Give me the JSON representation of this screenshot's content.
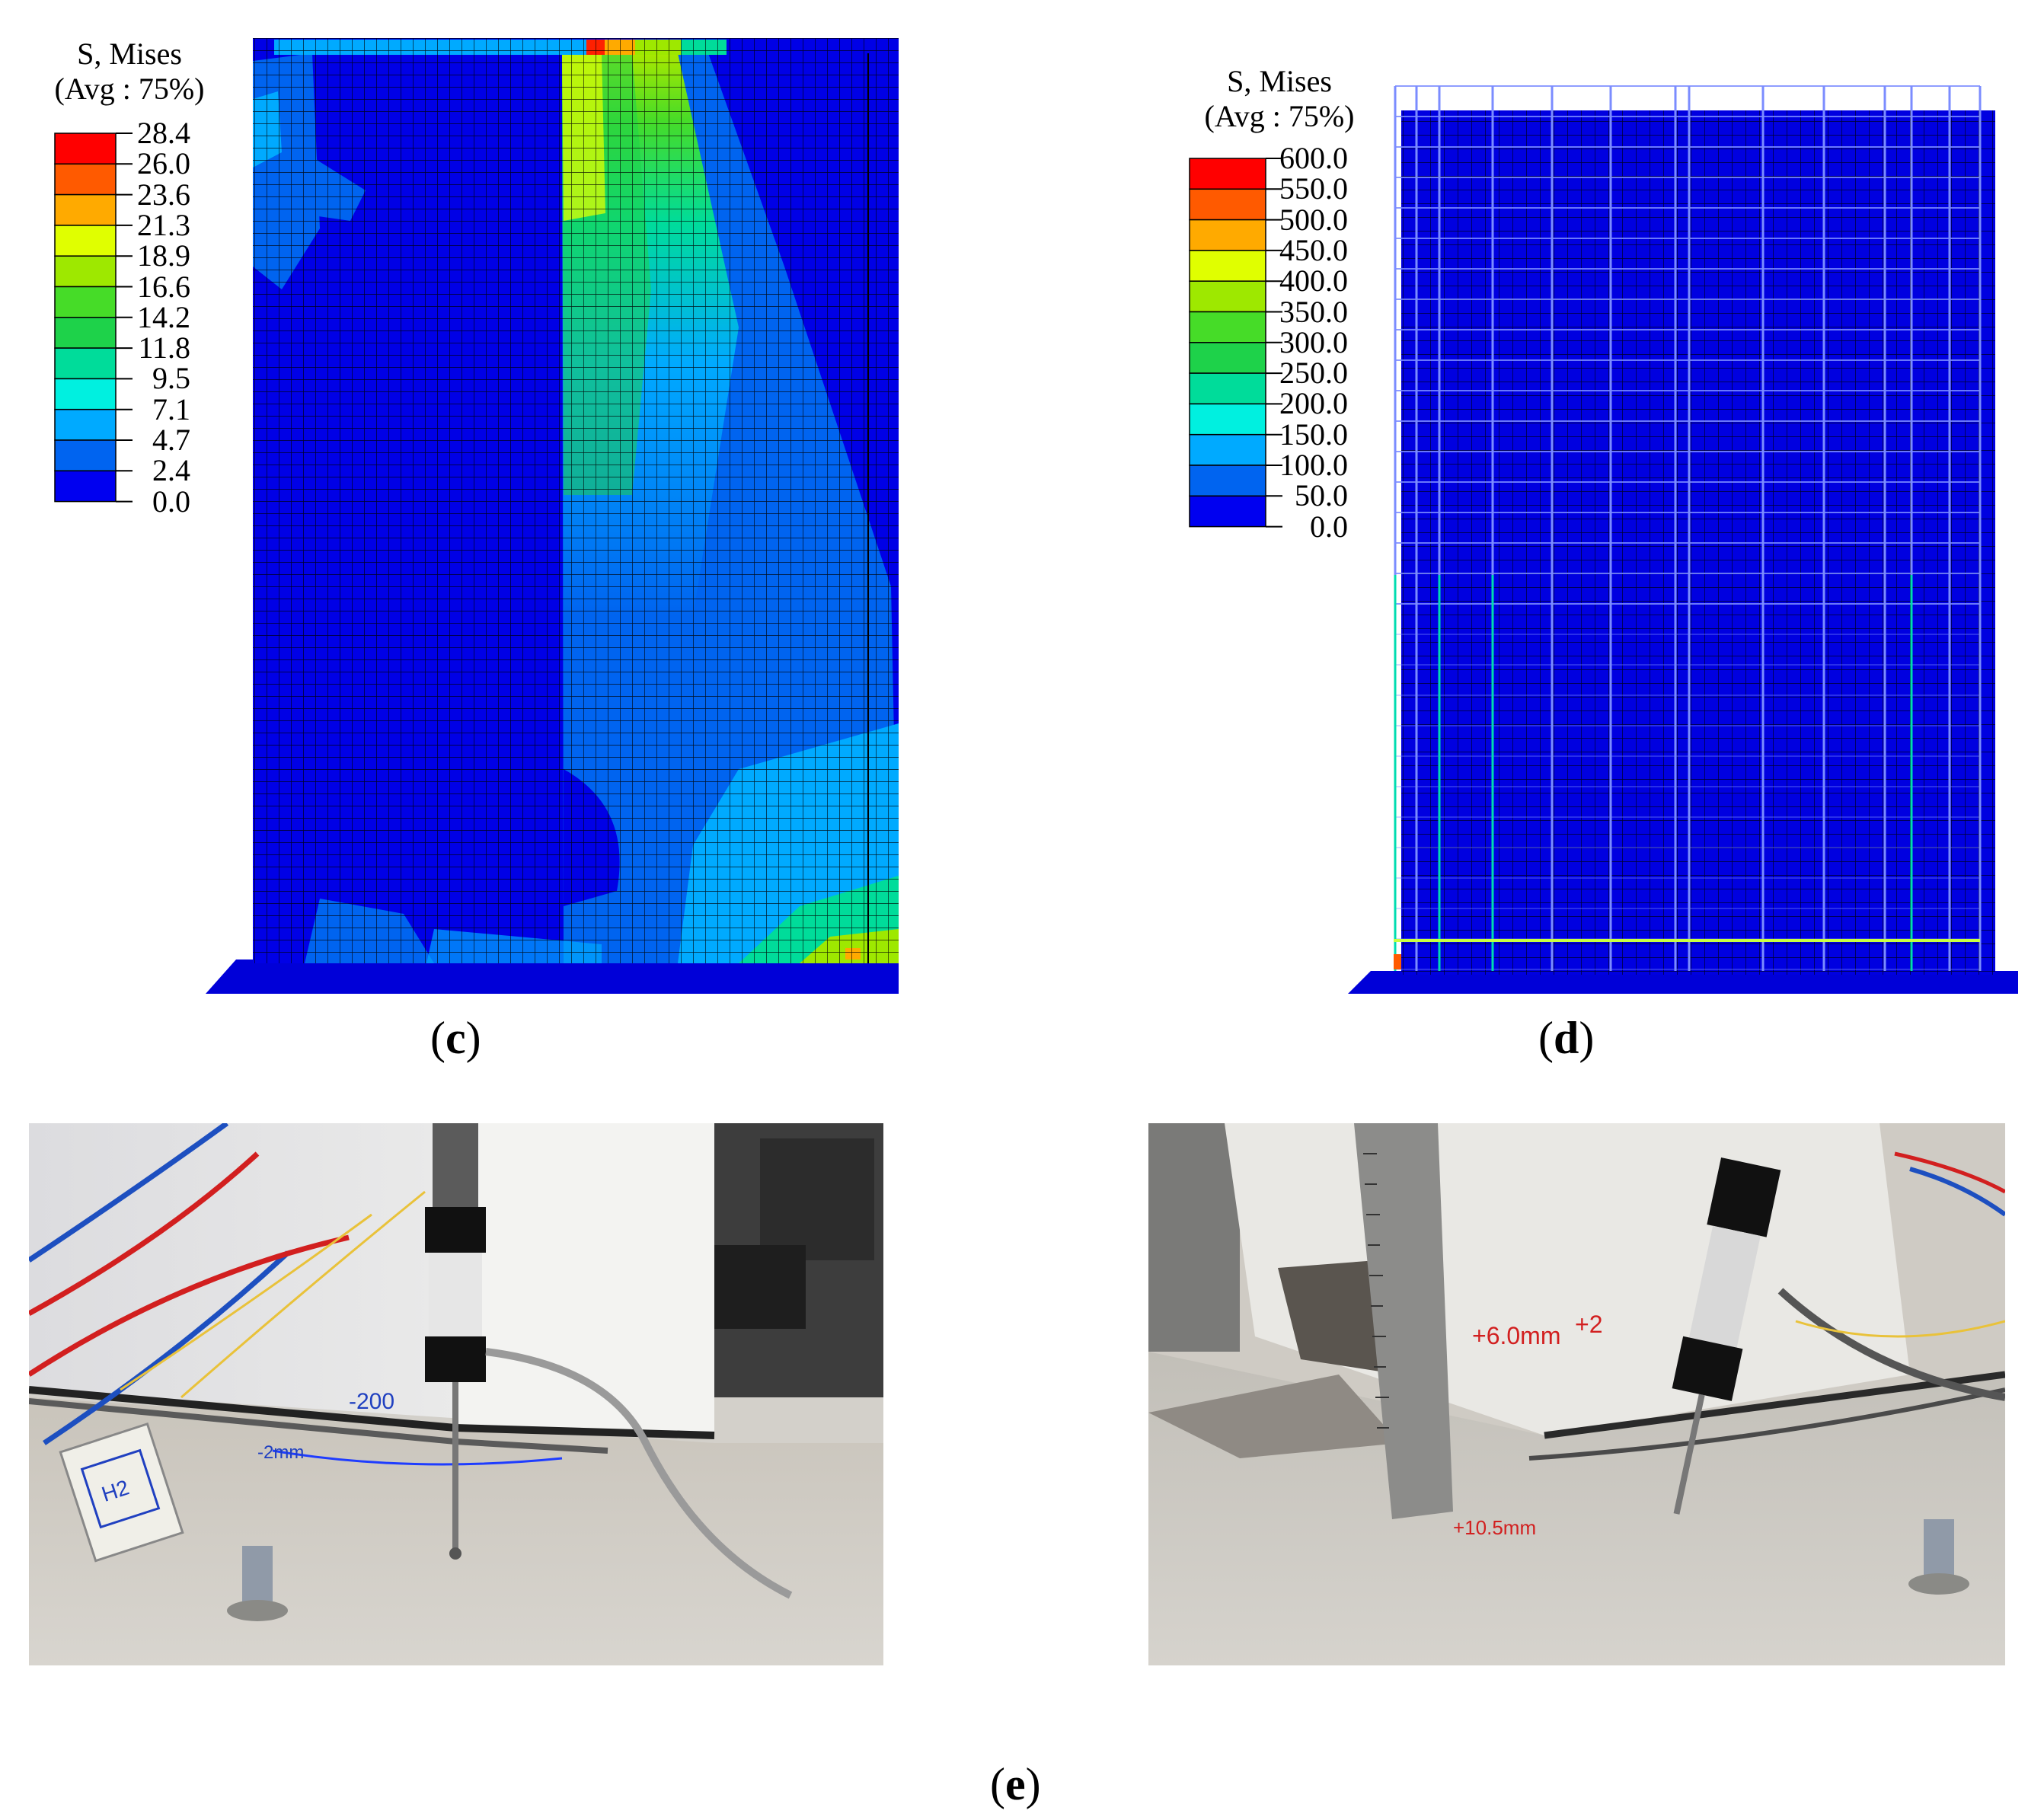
{
  "legend_c": {
    "title_line1": "S, Mises",
    "title_line2": "(Avg : 75%)",
    "ticks": [
      "28.4",
      "26.0",
      "23.6",
      "21.3",
      "18.9",
      "16.6",
      "14.2",
      "11.8",
      "9.5",
      "7.1",
      "4.7",
      "2.4",
      "0.0"
    ],
    "colors": [
      "#ff0000",
      "#ff5a00",
      "#ffaa00",
      "#e0ff00",
      "#9ee800",
      "#46dc28",
      "#1ed24a",
      "#00dc9a",
      "#00f0e0",
      "#00aaff",
      "#0064f0",
      "#0000f0"
    ]
  },
  "legend_d": {
    "title_line1": "S, Mises",
    "title_line2": "(Avg : 75%)",
    "ticks": [
      "600.0",
      "550.0",
      "500.0",
      "450.0",
      "400.0",
      "350.0",
      "300.0",
      "250.0",
      "200.0",
      "150.0",
      "100.0",
      "50.0",
      "0.0"
    ],
    "colors": [
      "#ff0000",
      "#ff5a00",
      "#ffaa00",
      "#e0ff00",
      "#9ee800",
      "#46dc28",
      "#1ed24a",
      "#00dc9a",
      "#00f0e0",
      "#00aaff",
      "#0064f0",
      "#0000f0"
    ]
  },
  "captions": {
    "c": "c",
    "d": "d",
    "e": "e"
  },
  "photo_left": {
    "marks": [
      "-200",
      "-2mm"
    ],
    "tag": "H2"
  },
  "photo_right": {
    "marks": [
      "+6.0mm",
      "+2",
      "+10.5mm"
    ]
  }
}
